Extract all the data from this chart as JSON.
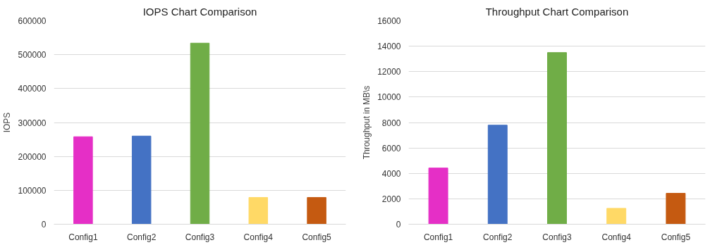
{
  "chart_data": [
    {
      "type": "bar",
      "title": "IOPS Chart Comparison",
      "ylabel": "IOPS",
      "categories": [
        "Config1",
        "Config2",
        "Config3",
        "Config4",
        "Config5"
      ],
      "values": [
        258000,
        260000,
        534000,
        79000,
        79000
      ],
      "colors": [
        "#e52fc6",
        "#4472c4",
        "#70ad47",
        "#ffd966",
        "#c55a11"
      ],
      "ylim": [
        0,
        600000
      ],
      "yticks": [
        0,
        100000,
        200000,
        300000,
        400000,
        500000,
        600000
      ],
      "grid": "y"
    },
    {
      "type": "bar",
      "title": "Throughput Chart Comparison",
      "ylabel": "Throughput in MB\\s",
      "categories": [
        "Config1",
        "Config2",
        "Config3",
        "Config4",
        "Config5"
      ],
      "values": [
        4420,
        7790,
        13500,
        1250,
        2430
      ],
      "colors": [
        "#e52fc6",
        "#4472c4",
        "#70ad47",
        "#ffd966",
        "#c55a11"
      ],
      "ylim": [
        0,
        16000
      ],
      "yticks": [
        0,
        2000,
        4000,
        6000,
        8000,
        10000,
        12000,
        14000,
        16000
      ],
      "grid": "y"
    }
  ]
}
